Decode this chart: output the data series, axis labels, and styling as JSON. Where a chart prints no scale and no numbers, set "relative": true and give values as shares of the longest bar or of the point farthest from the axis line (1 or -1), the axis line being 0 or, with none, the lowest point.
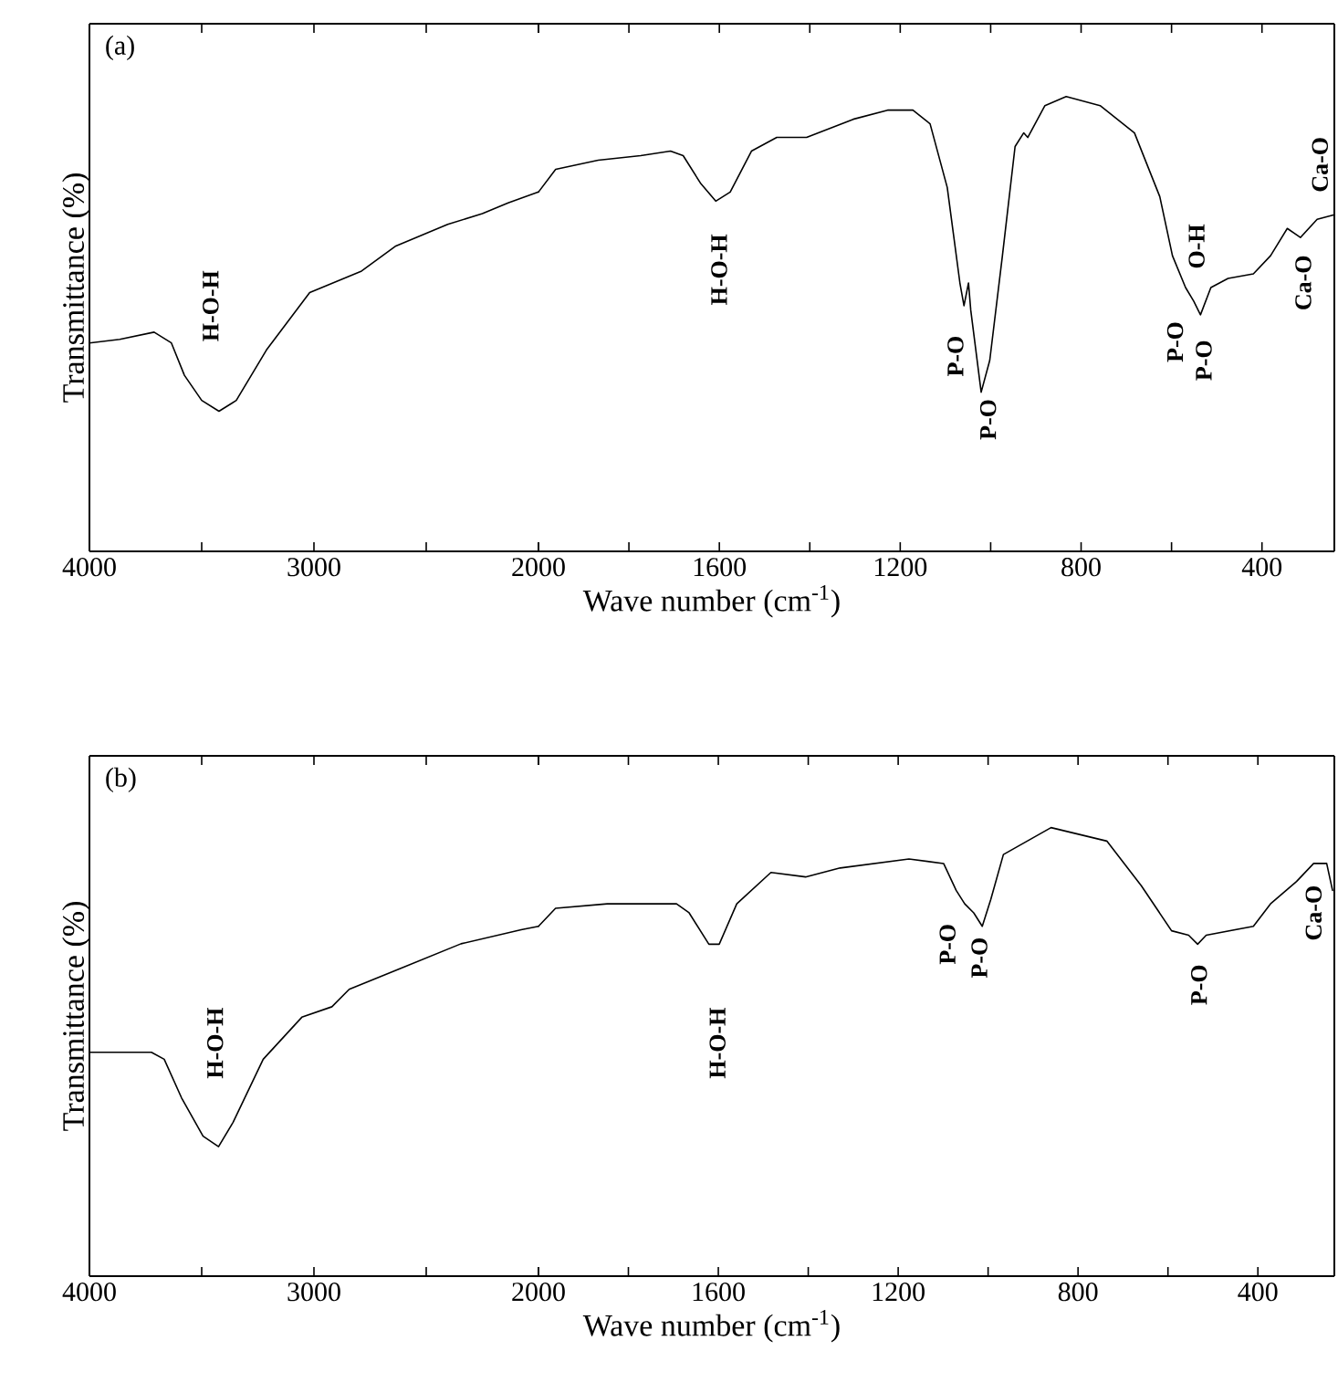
{
  "chart_data": [
    {
      "type": "line",
      "ylabel": "Transmittance (%)",
      "relative": true,
      "xlim": [
        4000,
        2000
      ],
      "xticks": [
        4000,
        {
          "value": 3500,
          "label": null
        },
        3000,
        {
          "value": 2500,
          "label": null
        },
        2000
      ],
      "x": [
        4000,
        3865,
        3712,
        3635,
        3577,
        3500,
        3423,
        3346,
        3212,
        3019,
        2788,
        2635,
        2404,
        2250,
        2135,
        2000
      ],
      "series": [
        {
          "color": "#000000",
          "values": [
            0.58,
            0.59,
            0.61,
            0.58,
            0.49,
            0.42,
            0.39,
            0.42,
            0.56,
            0.72,
            0.78,
            0.85,
            0.91,
            0.94,
            0.97,
            1.0
          ]
        }
      ],
      "annotations": [
        "(a)",
        "H-O-H"
      ]
    },
    {
      "type": "line",
      "xlabel": "Wave number (cm$^{-1}$)",
      "relative": true,
      "xlim": [
        2000,
        240
      ],
      "xticks": [
        {
          "value": 2000,
          "label": null
        },
        {
          "value": 1800,
          "label": null
        },
        1600,
        {
          "value": 1400,
          "label": null
        },
        1200,
        {
          "value": 1000,
          "label": null
        },
        800,
        {
          "value": 600,
          "label": null
        },
        400
      ],
      "x": [
        2000,
        1962,
        1868,
        1774,
        1708,
        1680,
        1642,
        1608,
        1576,
        1529,
        1473,
        1407,
        1304,
        1228,
        1172,
        1134,
        1096,
        1068,
        1059,
        1049,
        1044,
        1021,
        1002,
        974,
        946,
        927,
        918,
        880,
        833,
        758,
        682,
        626,
        598,
        569,
        551,
        536,
        513,
        475,
        419,
        381,
        344,
        315,
        278,
        240
      ],
      "series": [
        {
          "color": "#000000",
          "values": [
            0.79,
            0.84,
            0.86,
            0.87,
            0.88,
            0.87,
            0.81,
            0.77,
            0.79,
            0.88,
            0.91,
            0.91,
            0.95,
            0.97,
            0.97,
            0.94,
            0.8,
            0.59,
            0.54,
            0.59,
            0.53,
            0.35,
            0.42,
            0.65,
            0.89,
            0.92,
            0.91,
            0.98,
            1.0,
            0.98,
            0.92,
            0.78,
            0.65,
            0.58,
            0.55,
            0.52,
            0.58,
            0.6,
            0.61,
            0.65,
            0.71,
            0.69,
            0.73,
            0.74
          ]
        }
      ],
      "annotations": [
        "H-O-H",
        "P-O",
        "P-O",
        "P-O",
        "P-O",
        "O-H",
        "Ca-O",
        "Ca-O"
      ]
    },
    {
      "type": "line",
      "ylabel": "Transmittance (%)",
      "relative": true,
      "xlim": [
        4000,
        2000
      ],
      "xticks": [
        4000,
        {
          "value": 3500,
          "label": null
        },
        3000,
        {
          "value": 2500,
          "label": null
        },
        2000
      ],
      "x": [
        4000,
        3724,
        3667,
        3590,
        3494,
        3425,
        3360,
        3226,
        3054,
        2920,
        2843,
        2613,
        2345,
        2077,
        2000
      ],
      "series": [
        {
          "color": "#000000",
          "values": [
            0.64,
            0.64,
            0.62,
            0.51,
            0.4,
            0.37,
            0.44,
            0.62,
            0.74,
            0.77,
            0.82,
            0.88,
            0.95,
            0.99,
            1.0
          ]
        }
      ],
      "annotations": [
        "(b)",
        "H-O-H"
      ]
    },
    {
      "type": "line",
      "xlabel": "Wave number (cm$^{-1}$)",
      "relative": true,
      "xlim": [
        2000,
        230
      ],
      "xticks": [
        {
          "value": 2000,
          "label": null
        },
        {
          "value": 1800,
          "label": null
        },
        1600,
        {
          "value": 1400,
          "label": null
        },
        1200,
        {
          "value": 1000,
          "label": null
        },
        800,
        {
          "value": 600,
          "label": null
        },
        400
      ],
      "x": [
        2000,
        1962,
        1847,
        1693,
        1665,
        1621,
        1598,
        1559,
        1483,
        1406,
        1329,
        1176,
        1099,
        1071,
        1052,
        1032,
        1013,
        994,
        966,
        860,
        736,
        659,
        592,
        554,
        534,
        515,
        410,
        372,
        314,
        276,
        247,
        234
      ],
      "series": [
        {
          "color": "#000000",
          "values": [
            0.78,
            0.82,
            0.83,
            0.83,
            0.81,
            0.74,
            0.74,
            0.83,
            0.9,
            0.89,
            0.91,
            0.93,
            0.92,
            0.86,
            0.83,
            0.81,
            0.78,
            0.84,
            0.94,
            1.0,
            0.97,
            0.87,
            0.77,
            0.76,
            0.74,
            0.76,
            0.78,
            0.83,
            0.88,
            0.92,
            0.92,
            0.86
          ]
        }
      ],
      "annotations": [
        "H-O-H",
        "P-O",
        "P-O",
        "P-O",
        "Ca-O"
      ]
    }
  ]
}
